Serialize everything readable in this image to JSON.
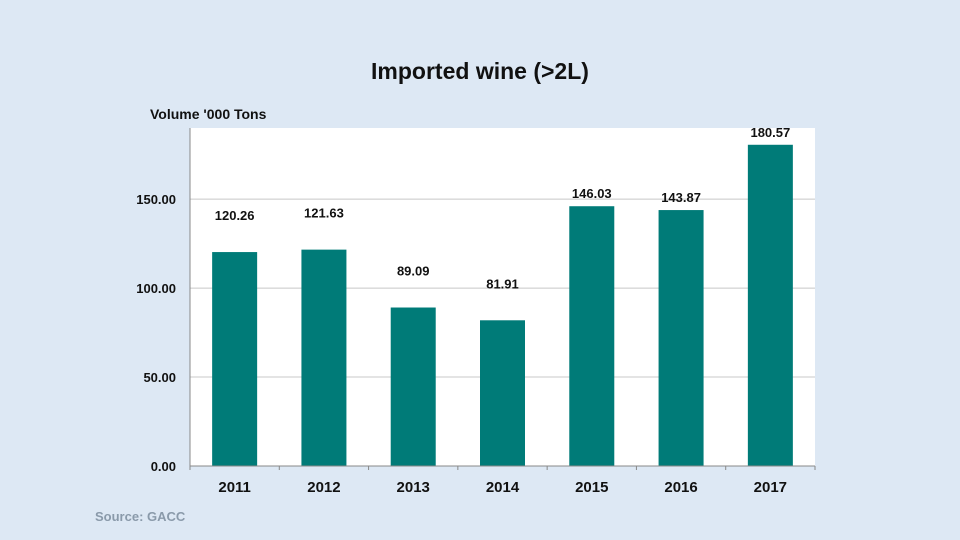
{
  "chart_data": {
    "type": "bar",
    "title": "Imported wine (>2L)",
    "ylabel": "Volume '000 Tons",
    "xlabel": "",
    "categories": [
      "2011",
      "2012",
      "2013",
      "2014",
      "2015",
      "2016",
      "2017"
    ],
    "values": [
      120.26,
      121.63,
      89.09,
      81.91,
      146.03,
      143.87,
      180.57
    ],
    "data_labels": [
      "120.26",
      "121.63",
      "89.09",
      "81.91",
      "146.03",
      "143.87",
      "180.57"
    ],
    "yticks": [
      0,
      50,
      100,
      150
    ],
    "ytick_labels": [
      "0.00",
      "50.00",
      "100.00",
      "150.00"
    ],
    "ylim": [
      0,
      190
    ],
    "grid": true,
    "bar_color": "#007b78",
    "source": "Source: GACC"
  }
}
